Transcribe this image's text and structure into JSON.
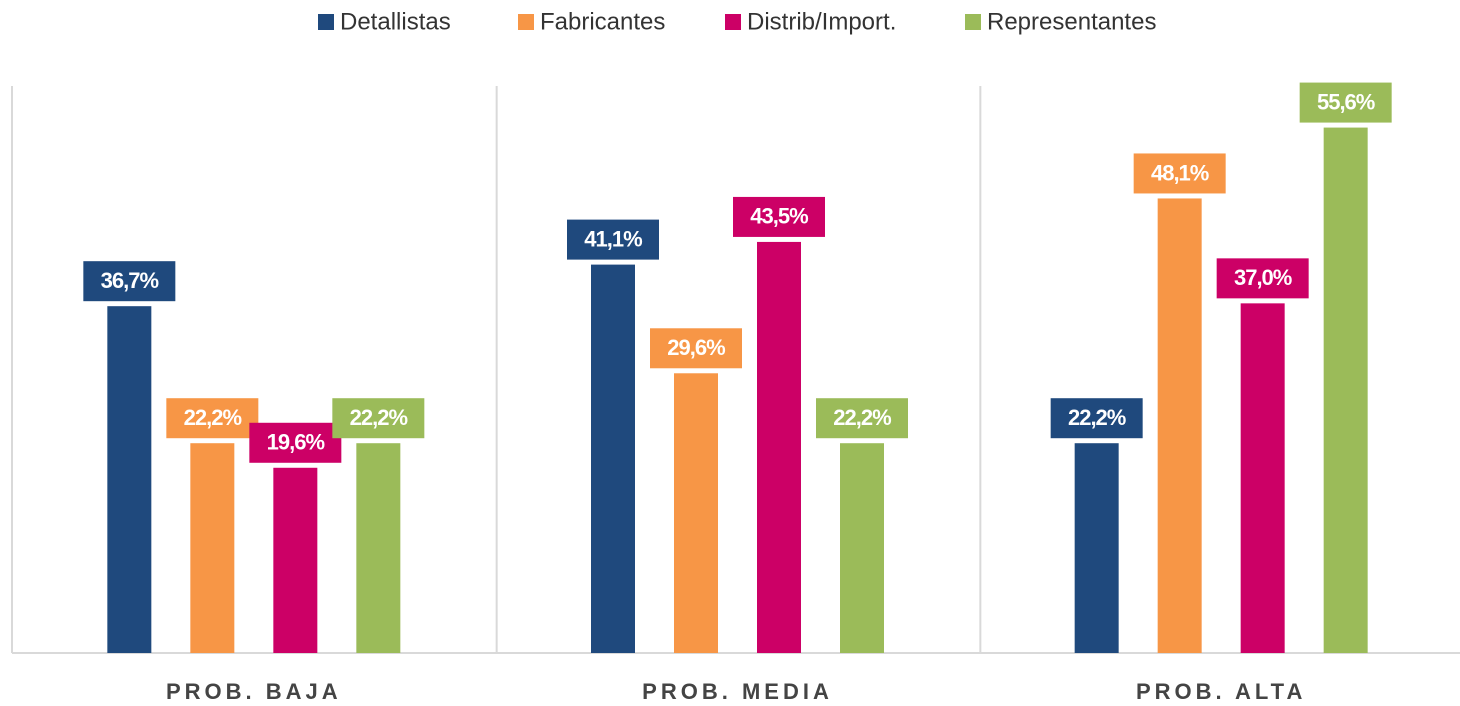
{
  "chart_data": {
    "type": "bar",
    "categories": [
      "PROB. BAJA",
      "PROB. MEDIA",
      "PROB. ALTA"
    ],
    "series": [
      {
        "name": "Detallistas",
        "color": "#1f497d",
        "values": [
          36.7,
          41.1,
          22.2
        ],
        "value_labels": [
          "36,7%",
          "41,1%",
          "22,2%"
        ]
      },
      {
        "name": "Fabricantes",
        "color": "#f79646",
        "values": [
          22.2,
          29.6,
          48.1
        ],
        "value_labels": [
          "22,2%",
          "29,6%",
          "48,1%"
        ]
      },
      {
        "name": "Distrib/Import.",
        "color": "#cc0066",
        "values": [
          19.6,
          43.5,
          37.0
        ],
        "value_labels": [
          "19,6%",
          "43,5%",
          "37,0%"
        ]
      },
      {
        "name": "Representantes",
        "color": "#9bbb59",
        "values": [
          22.2,
          22.2,
          55.6
        ],
        "value_labels": [
          "22,2%",
          "22,2%",
          "55,6%"
        ]
      }
    ],
    "ylim": [
      0,
      60
    ],
    "legend": "top"
  }
}
